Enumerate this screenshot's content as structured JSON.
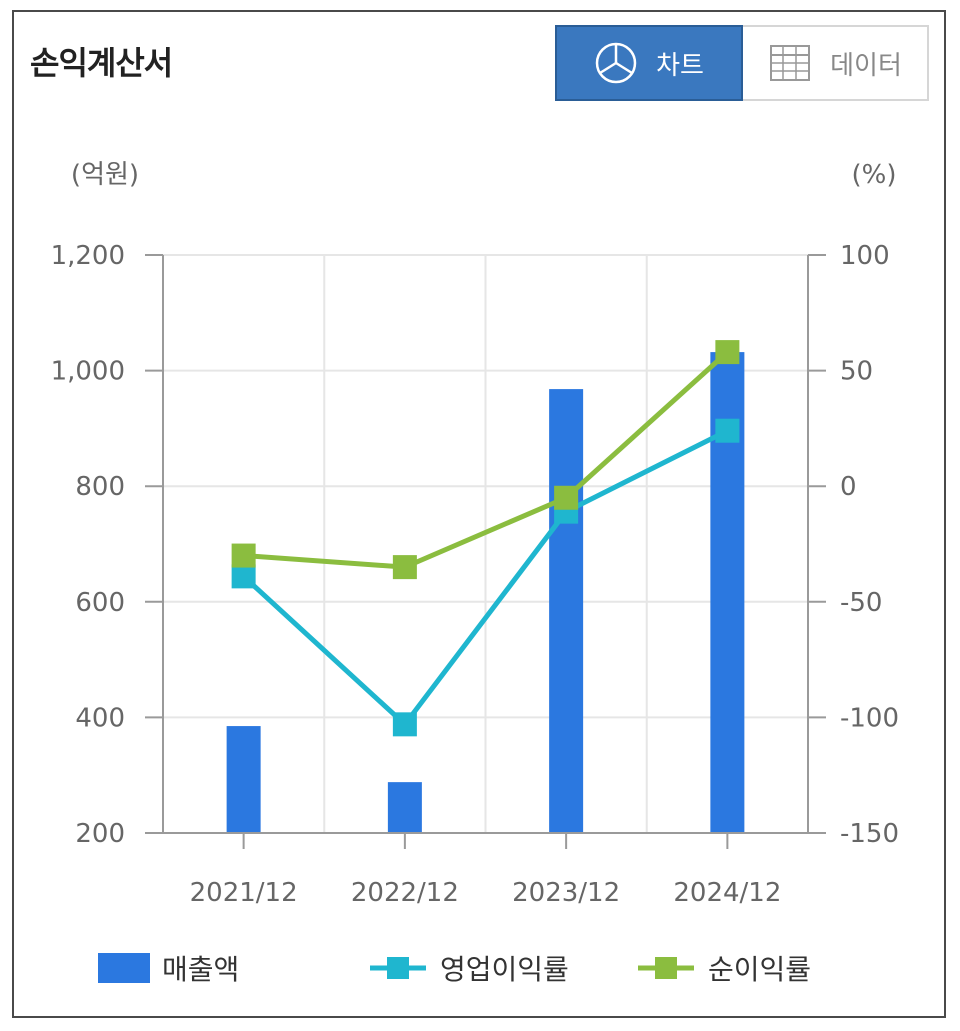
{
  "header": {
    "title": "손익계산서",
    "tabs": [
      {
        "label": "차트",
        "icon": "pie-chart-icon",
        "active": true
      },
      {
        "label": "데이터",
        "icon": "table-grid-icon",
        "active": false
      }
    ]
  },
  "colors": {
    "bar": "#2b78e0",
    "operating": "#1fb6cf",
    "net": "#8bbd3f",
    "active_tab": "#3a78bf"
  },
  "chart_data": {
    "type": "bar",
    "left_unit": "(억원)",
    "right_unit": "(%)",
    "categories": [
      "2021/12",
      "2022/12",
      "2023/12",
      "2024/12"
    ],
    "left_axis": {
      "min": 200,
      "max": 1200,
      "ticks": [
        200,
        400,
        600,
        800,
        "1,000",
        "1,200"
      ],
      "tick_values": [
        200,
        400,
        600,
        800,
        1000,
        1200
      ]
    },
    "right_axis": {
      "min": -150,
      "max": 100,
      "ticks": [
        "-150",
        "-100",
        "-50",
        "0",
        "50",
        "100"
      ],
      "tick_values": [
        -150,
        -100,
        -50,
        0,
        50,
        100
      ]
    },
    "grid": true,
    "legend_position": "bottom",
    "series": [
      {
        "name": "매출액",
        "kind": "bar",
        "axis": "left",
        "values": [
          385,
          288,
          968,
          1032
        ]
      },
      {
        "name": "영업이익률",
        "kind": "line",
        "axis": "right",
        "values": [
          -39,
          -103,
          -11,
          24
        ]
      },
      {
        "name": "순이익률",
        "kind": "line",
        "axis": "right",
        "values": [
          -30,
          -35,
          -5,
          58
        ]
      }
    ]
  }
}
